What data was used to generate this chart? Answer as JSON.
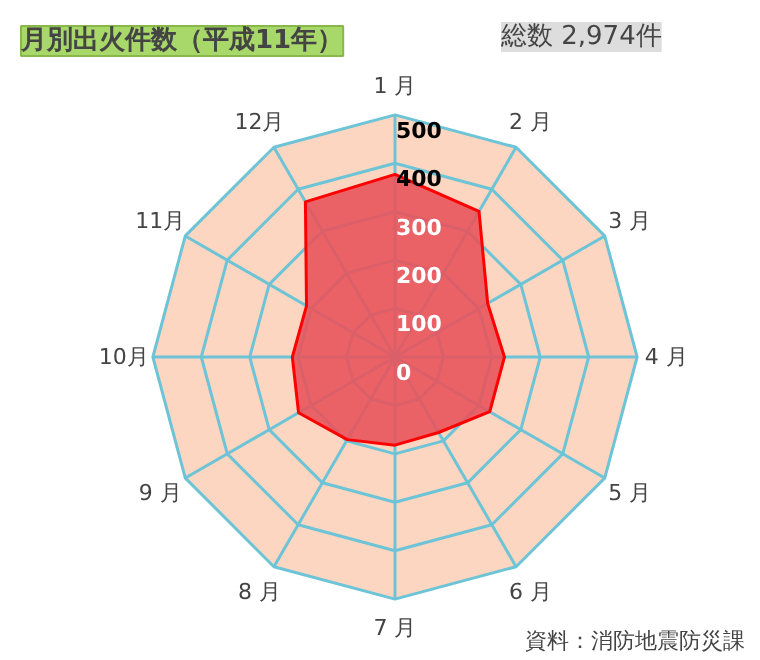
{
  "chart_data": {
    "type": "radar",
    "title": "月別出火件数（平成11年）",
    "subtitle": "総数 2,974件",
    "categories": [
      "1 月",
      "2 月",
      "3 月",
      "4 月",
      "5 月",
      "6 月",
      "7 月",
      "8 月",
      "9 月",
      "10月",
      "11月",
      "12月"
    ],
    "series": [
      {
        "color": "#e8545c",
        "values": [
          377,
          347,
          221,
          226,
          226,
          180,
          182,
          197,
          230,
          212,
          211,
          370
        ]
      }
    ],
    "ylim": [
      0,
      500
    ],
    "yticks": [
      0,
      100,
      200,
      300,
      400,
      500
    ],
    "grid": true,
    "annotations": [
      "資料：消防地震防災課"
    ]
  }
}
